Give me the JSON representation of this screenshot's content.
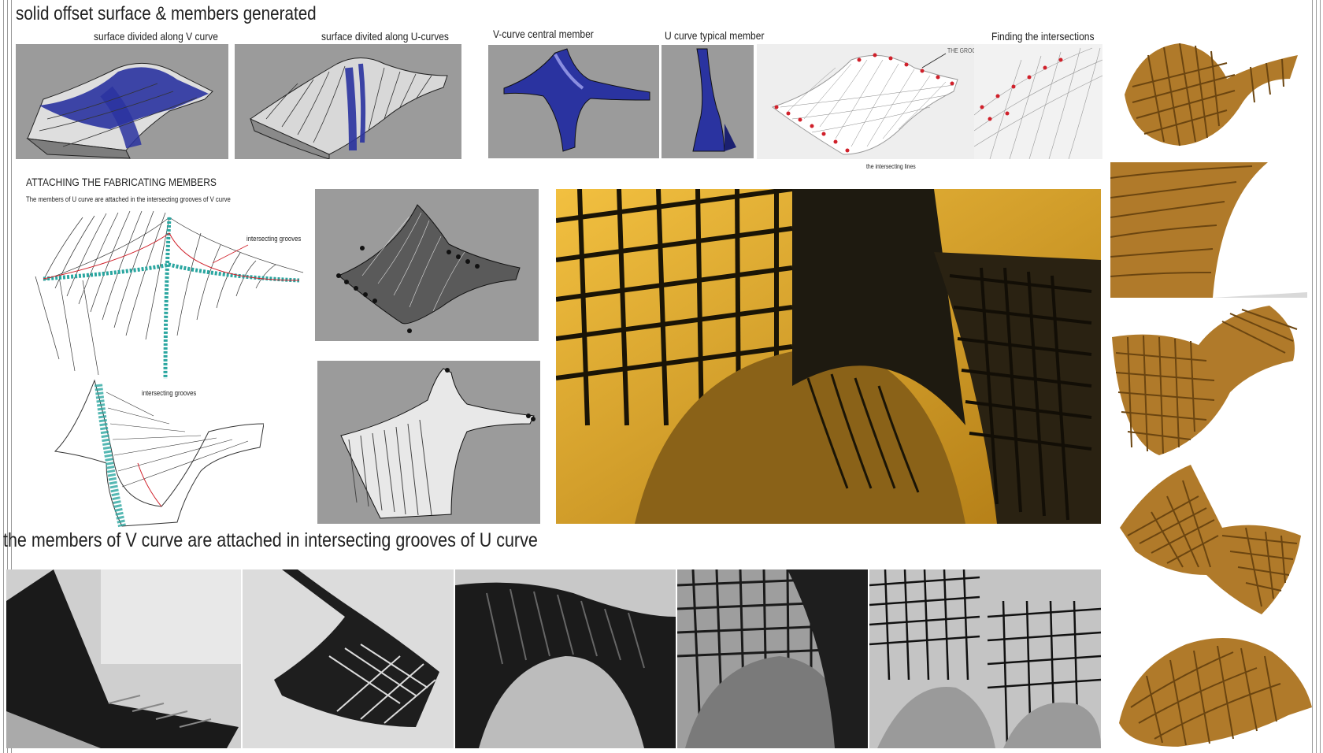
{
  "headings": {
    "main_title": "solid offset surface & members generated",
    "attaching_title": "ATTACHING THE FABRICATING MEMBERS",
    "attaching_subtitle": "The members of U curve  are attached in the intersecting grooves of V curve",
    "bottom_caption": "the members of V curve are attached in intersecting grooves of U curve"
  },
  "top_row_labels": {
    "v_curve_division": "surface divided along V curve",
    "u_curve_division": "surface divited along U-curves",
    "v_central_member": "V-curve central member",
    "u_typical_member": "U curve typical member",
    "finding_intersections": "Finding the intersections",
    "intersecting_lines": "the intersecting lines",
    "callout_note": "THE GROOVES FABRICATE IN MEMBERS"
  },
  "diagram_labels": {
    "grooves_upper": "intersecting grooves",
    "grooves_lower": "intersecting grooves"
  },
  "colors": {
    "render_gray": "#9b9b9b",
    "blue_member": "#2a33a0",
    "intersection_red": "#d0202a",
    "groove_teal": "#2aa6a0",
    "wood": "#b07a2a",
    "amber_photo": "#d9a21c"
  }
}
